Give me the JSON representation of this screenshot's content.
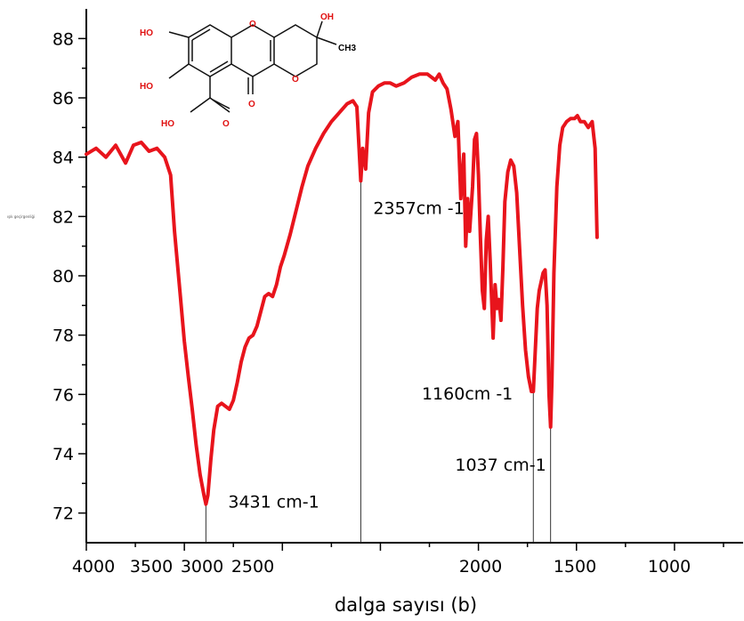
{
  "chart_data": {
    "type": "line",
    "title": "",
    "xlabel": "dalga sayısı (b)",
    "ylabel": "",
    "y_side_label": "ışık geçirgenliği",
    "xlim": [
      4000,
      650
    ],
    "ylim": [
      71,
      89
    ],
    "x_ticks": [
      {
        "v": 4000,
        "label": "4000"
      },
      {
        "v": 3500,
        "label": "3500"
      },
      {
        "v": 3000,
        "label": "3000"
      },
      {
        "v": 2500,
        "label": "2500"
      },
      {
        "v": 2000,
        "label": "2000"
      },
      {
        "v": 1500,
        "label": "1500"
      },
      {
        "v": 1000,
        "label": "1000"
      }
    ],
    "y_ticks": [
      72,
      74,
      76,
      78,
      80,
      82,
      84,
      86,
      88
    ],
    "series": [
      {
        "color": "#e8141c",
        "points": [
          [
            4000,
            84.1
          ],
          [
            3950,
            84.3
          ],
          [
            3900,
            84.0
          ],
          [
            3850,
            84.4
          ],
          [
            3800,
            83.8
          ],
          [
            3760,
            84.4
          ],
          [
            3720,
            84.5
          ],
          [
            3680,
            84.2
          ],
          [
            3640,
            84.3
          ],
          [
            3600,
            84.0
          ],
          [
            3570,
            83.4
          ],
          [
            3550,
            81.5
          ],
          [
            3520,
            79.3
          ],
          [
            3500,
            77.8
          ],
          [
            3480,
            76.6
          ],
          [
            3460,
            75.5
          ],
          [
            3440,
            74.3
          ],
          [
            3420,
            73.3
          ],
          [
            3400,
            72.6
          ],
          [
            3390,
            72.3
          ],
          [
            3380,
            72.6
          ],
          [
            3365,
            73.8
          ],
          [
            3350,
            74.8
          ],
          [
            3330,
            75.6
          ],
          [
            3310,
            75.7
          ],
          [
            3290,
            75.6
          ],
          [
            3270,
            75.5
          ],
          [
            3250,
            75.8
          ],
          [
            3230,
            76.4
          ],
          [
            3210,
            77.1
          ],
          [
            3190,
            77.6
          ],
          [
            3170,
            77.9
          ],
          [
            3150,
            78.0
          ],
          [
            3130,
            78.3
          ],
          [
            3110,
            78.8
          ],
          [
            3090,
            79.3
          ],
          [
            3070,
            79.4
          ],
          [
            3050,
            79.3
          ],
          [
            3030,
            79.7
          ],
          [
            3010,
            80.3
          ],
          [
            2990,
            80.7
          ],
          [
            2960,
            81.4
          ],
          [
            2930,
            82.2
          ],
          [
            2900,
            83.0
          ],
          [
            2870,
            83.7
          ],
          [
            2830,
            84.3
          ],
          [
            2790,
            84.8
          ],
          [
            2750,
            85.2
          ],
          [
            2710,
            85.5
          ],
          [
            2670,
            85.8
          ],
          [
            2640,
            85.9
          ],
          [
            2620,
            85.7
          ],
          [
            2600,
            83.2
          ],
          [
            2590,
            84.3
          ],
          [
            2575,
            83.6
          ],
          [
            2560,
            85.5
          ],
          [
            2540,
            86.2
          ],
          [
            2510,
            86.4
          ],
          [
            2480,
            86.5
          ],
          [
            2450,
            86.5
          ],
          [
            2420,
            86.4
          ],
          [
            2380,
            86.5
          ],
          [
            2340,
            86.7
          ],
          [
            2300,
            86.8
          ],
          [
            2260,
            86.8
          ],
          [
            2220,
            86.6
          ],
          [
            2200,
            86.8
          ],
          [
            2180,
            86.5
          ],
          [
            2160,
            86.3
          ],
          [
            2140,
            85.6
          ],
          [
            2120,
            84.7
          ],
          [
            2105,
            85.2
          ],
          [
            2090,
            82.6
          ],
          [
            2075,
            84.1
          ],
          [
            2065,
            81.0
          ],
          [
            2055,
            82.6
          ],
          [
            2045,
            81.5
          ],
          [
            2030,
            83.0
          ],
          [
            2020,
            84.6
          ],
          [
            2010,
            84.8
          ],
          [
            2000,
            83.4
          ],
          [
            1990,
            81.3
          ],
          [
            1980,
            79.5
          ],
          [
            1970,
            78.9
          ],
          [
            1960,
            81.2
          ],
          [
            1950,
            82.0
          ],
          [
            1940,
            80.5
          ],
          [
            1935,
            79.6
          ],
          [
            1925,
            77.9
          ],
          [
            1915,
            79.7
          ],
          [
            1905,
            78.9
          ],
          [
            1895,
            79.2
          ],
          [
            1885,
            78.5
          ],
          [
            1875,
            80.3
          ],
          [
            1865,
            82.5
          ],
          [
            1850,
            83.5
          ],
          [
            1835,
            83.9
          ],
          [
            1820,
            83.7
          ],
          [
            1805,
            82.8
          ],
          [
            1790,
            80.9
          ],
          [
            1775,
            79.0
          ],
          [
            1760,
            77.5
          ],
          [
            1745,
            76.6
          ],
          [
            1730,
            76.1
          ],
          [
            1720,
            76.1
          ],
          [
            1710,
            77.5
          ],
          [
            1700,
            78.9
          ],
          [
            1690,
            79.5
          ],
          [
            1680,
            79.8
          ],
          [
            1670,
            80.1
          ],
          [
            1660,
            80.2
          ],
          [
            1650,
            79.0
          ],
          [
            1640,
            76.0
          ],
          [
            1632,
            74.9
          ],
          [
            1625,
            76.5
          ],
          [
            1615,
            80.1
          ],
          [
            1600,
            83.0
          ],
          [
            1585,
            84.4
          ],
          [
            1570,
            85.0
          ],
          [
            1550,
            85.2
          ],
          [
            1530,
            85.3
          ],
          [
            1510,
            85.3
          ],
          [
            1495,
            85.4
          ],
          [
            1480,
            85.2
          ],
          [
            1460,
            85.2
          ],
          [
            1440,
            85.0
          ],
          [
            1420,
            85.2
          ],
          [
            1405,
            84.3
          ],
          [
            1395,
            81.3
          ]
        ]
      }
    ],
    "annotations": [
      {
        "text": "3431 cm-1",
        "x": 3390,
        "y_top": 72.3
      },
      {
        "text": "2357cm -1",
        "x": 2600,
        "y_top": 83.2
      },
      {
        "text": "1160cm -1",
        "x": 1720,
        "y_top": 76.1
      },
      {
        "text": "1037 cm-1",
        "x": 1632,
        "y_top": 74.9
      }
    ],
    "molecule_labels": [
      "HO",
      "HO",
      "HO",
      "OH",
      "CH3",
      "O",
      "O",
      "O",
      "OH",
      "O"
    ]
  }
}
